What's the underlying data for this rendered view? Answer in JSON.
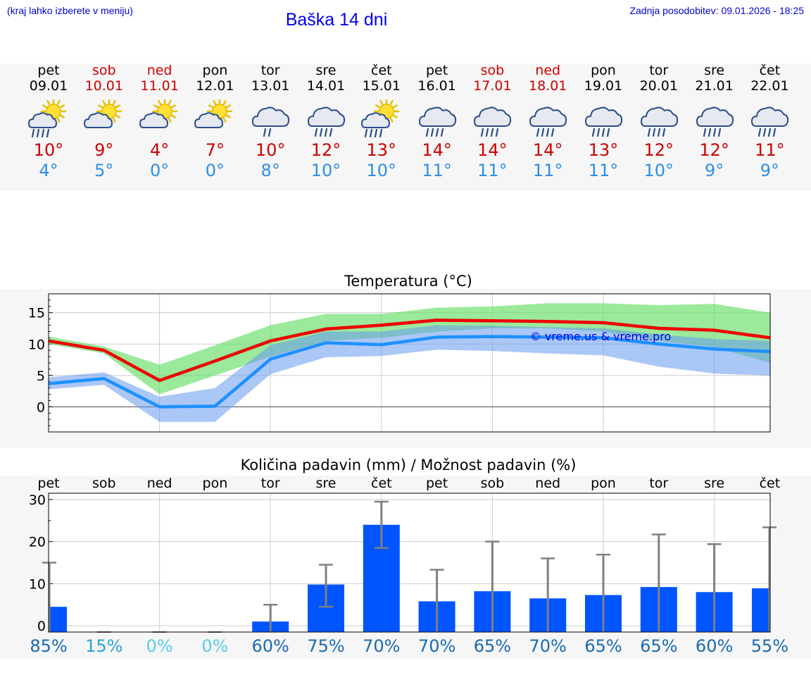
{
  "header": {
    "region_hint": "(kraj lahko izberete v meniju)",
    "title": "Baška 14 dni",
    "last_update": "Zadnja posodobitev: 09.01.2026 - 18:25"
  },
  "days": [
    {
      "name": "pet",
      "date": "09.01",
      "weekend": false,
      "icon": "sun-cloud-rain-icon",
      "tmax": "10°",
      "tmin": "4°"
    },
    {
      "name": "sob",
      "date": "10.01",
      "weekend": true,
      "icon": "sun-cloud-icon",
      "tmax": "9°",
      "tmin": "5°"
    },
    {
      "name": "ned",
      "date": "11.01",
      "weekend": true,
      "icon": "sun-cloud-icon",
      "tmax": "4°",
      "tmin": "0°"
    },
    {
      "name": "pon",
      "date": "12.01",
      "weekend": false,
      "icon": "sun-cloud-icon",
      "tmax": "7°",
      "tmin": "0°"
    },
    {
      "name": "tor",
      "date": "13.01",
      "weekend": false,
      "icon": "cloud-light-rain-icon",
      "tmax": "10°",
      "tmin": "8°"
    },
    {
      "name": "sre",
      "date": "14.01",
      "weekend": false,
      "icon": "cloud-rain-icon",
      "tmax": "12°",
      "tmin": "10°"
    },
    {
      "name": "čet",
      "date": "15.01",
      "weekend": false,
      "icon": "sun-cloud-rain-icon",
      "tmax": "13°",
      "tmin": "10°"
    },
    {
      "name": "pet",
      "date": "16.01",
      "weekend": false,
      "icon": "cloud-rain-icon",
      "tmax": "14°",
      "tmin": "11°"
    },
    {
      "name": "sob",
      "date": "17.01",
      "weekend": true,
      "icon": "cloud-rain-icon",
      "tmax": "14°",
      "tmin": "11°"
    },
    {
      "name": "ned",
      "date": "18.01",
      "weekend": true,
      "icon": "cloud-rain-icon",
      "tmax": "14°",
      "tmin": "11°"
    },
    {
      "name": "pon",
      "date": "19.01",
      "weekend": false,
      "icon": "cloud-rain-icon",
      "tmax": "13°",
      "tmin": "11°"
    },
    {
      "name": "tor",
      "date": "20.01",
      "weekend": false,
      "icon": "cloud-rain-icon",
      "tmax": "12°",
      "tmin": "10°"
    },
    {
      "name": "sre",
      "date": "21.01",
      "weekend": false,
      "icon": "cloud-rain-icon",
      "tmax": "12°",
      "tmin": "9°"
    },
    {
      "name": "čet",
      "date": "22.01",
      "weekend": false,
      "icon": "cloud-rain-icon",
      "tmax": "11°",
      "tmin": "9°"
    }
  ],
  "colors": {
    "max_line": "#ee0000",
    "min_line": "#1e90ff",
    "max_band": "#66dd66",
    "min_band": "#6699ee",
    "bar": "#0055ff",
    "errbar": "#808080",
    "weekend": "#cc0000",
    "pct_high": "#1a6ab0",
    "pct_low": "#2aa4d8",
    "pct_zero": "#55ccee"
  },
  "chart_data": [
    {
      "type": "line",
      "title": "Temperatura (°C)",
      "watermark": "© vreme.us & vreme.pro",
      "x": [
        0,
        1,
        2,
        3,
        4,
        5,
        6,
        7,
        8,
        9,
        10,
        11,
        12,
        13
      ],
      "ylim": [
        -4,
        18
      ],
      "yticks": [
        0,
        5,
        10,
        15
      ],
      "series": [
        {
          "name": "max",
          "values": [
            10.5,
            9,
            4.2,
            7.3,
            10.5,
            12.4,
            13,
            13.8,
            13.7,
            13.6,
            13.4,
            12.5,
            12.2,
            11
          ]
        },
        {
          "name": "min",
          "values": [
            3.7,
            4.5,
            0,
            0.1,
            7.6,
            10.2,
            9.9,
            11.1,
            11.2,
            11.1,
            11,
            10,
            9.2,
            8.8
          ]
        }
      ],
      "bands": [
        {
          "name": "max-range",
          "low": [
            10,
            8.5,
            2,
            5,
            8,
            10.5,
            11,
            12,
            12.5,
            12.5,
            12,
            10.5,
            9.5,
            7
          ],
          "high": [
            11.2,
            9.6,
            6.7,
            9.8,
            13,
            14.8,
            14.8,
            15.8,
            16,
            16.5,
            16.5,
            16.2,
            16.4,
            15
          ]
        },
        {
          "name": "min-range",
          "low": [
            2.8,
            3.5,
            -2.4,
            -2.4,
            5.2,
            7.9,
            8.1,
            9.1,
            8.9,
            8.5,
            8.2,
            6.4,
            5.3,
            5
          ]
        },
        {
          "name": "min-range-high",
          "high": [
            4.7,
            5.5,
            1.6,
            3,
            9.8,
            12,
            12,
            13,
            12.9,
            12.7,
            12.5,
            11.5,
            10.8,
            10.5
          ]
        }
      ]
    },
    {
      "type": "bar",
      "title": "Količina padavin (mm) / Možnost padavin (%)",
      "categories": [
        "pet",
        "sob",
        "ned",
        "pon",
        "tor",
        "sre",
        "čet",
        "pet",
        "sob",
        "ned",
        "pon",
        "tor",
        "sre",
        "čet"
      ],
      "values": [
        4.5,
        0,
        0,
        0,
        1,
        9.8,
        24,
        5.8,
        8.2,
        6.5,
        7.3,
        9.2,
        8,
        8.9
      ],
      "err_low": [
        null,
        0,
        0,
        0,
        0,
        4.5,
        18.5,
        0,
        0,
        0,
        0,
        0,
        0,
        0
      ],
      "err_high": [
        15,
        0,
        0,
        0,
        5,
        14.5,
        29.5,
        13.3,
        20,
        16,
        16.9,
        21.7,
        19.4,
        23.4
      ],
      "ylim": [
        -1.5,
        31.5
      ],
      "yticks": [
        0,
        10,
        20,
        30
      ],
      "percent": [
        "85%",
        "15%",
        "0%",
        "0%",
        "60%",
        "75%",
        "70%",
        "70%",
        "65%",
        "70%",
        "65%",
        "65%",
        "60%",
        "55%"
      ]
    }
  ]
}
